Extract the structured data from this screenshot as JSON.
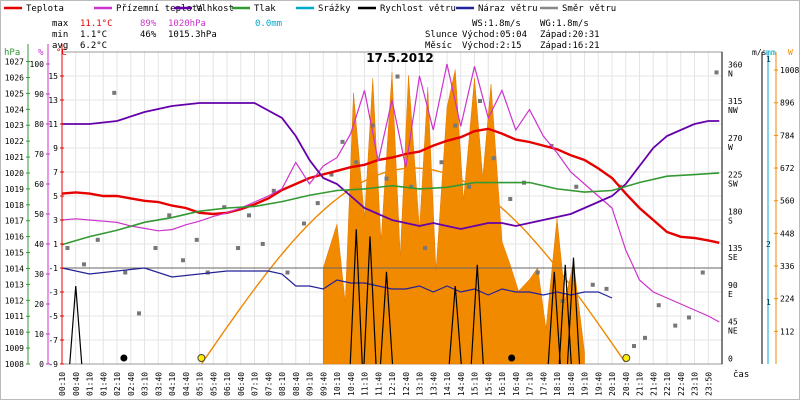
{
  "chart_data": {
    "type": "line",
    "title": "17.5.2012",
    "x_unit": "čas",
    "x_labels": [
      "00:10",
      "00:40",
      "01:10",
      "01:40",
      "02:10",
      "02:40",
      "03:10",
      "03:40",
      "04:10",
      "04:40",
      "05:10",
      "05:40",
      "06:10",
      "06:40",
      "07:10",
      "07:40",
      "08:10",
      "08:40",
      "09:10",
      "09:40",
      "10:10",
      "10:40",
      "11:10",
      "11:40",
      "12:10",
      "12:40",
      "13:10",
      "13:40",
      "14:10",
      "14:40",
      "15:10",
      "15:40",
      "16:10",
      "16:40",
      "17:10",
      "17:40",
      "18:10",
      "18:40",
      "19:10",
      "19:40",
      "20:10",
      "20:40",
      "21:10",
      "21:40",
      "22:10",
      "22:40",
      "23:10",
      "23:50"
    ],
    "legend": [
      {
        "name": "Teplota",
        "color": "#e60000"
      },
      {
        "name": "Přízemní teplota",
        "color": "#cc33cc"
      },
      {
        "name": "Vlhkost",
        "color": "#6600aa"
      },
      {
        "name": "Tlak",
        "color": "#339933"
      },
      {
        "name": "Srážky",
        "color": "#00aacc"
      },
      {
        "name": "Rychlost větru",
        "color": "#000000"
      },
      {
        "name": "Náraz větru",
        "color": "#222299"
      },
      {
        "name": "Směr větru",
        "color": "#888888"
      }
    ],
    "stats": {
      "labels": [
        "max",
        "min",
        "avg"
      ],
      "temp": [
        "11.1°C",
        "1.1°C",
        "6.2°C"
      ],
      "humidity": [
        "89%",
        "46%",
        ""
      ],
      "pressure": [
        "1020hPa",
        "1015.3hPa",
        ""
      ],
      "rain": [
        "0.0mm",
        "",
        ""
      ]
    },
    "info": {
      "ws": "WS:1.8m/s",
      "wg": "WG:1.8m/s",
      "sun_label": "Slunce",
      "sunrise": "Východ:05:04",
      "sunset": "Západ:20:31",
      "moon_label": "Měsíc",
      "moonrise": "Východ:2:15",
      "moonset": "Západ:16:21"
    },
    "axes": {
      "hpa": {
        "label": "hPa",
        "ticks": [
          "1027",
          "1026",
          "1025",
          "1024",
          "1023",
          "1022",
          "1021",
          "1020",
          "1019",
          "1018",
          "1017",
          "1016",
          "1015",
          "1014",
          "1013",
          "1012",
          "1011",
          "1010",
          "1009",
          "1008"
        ]
      },
      "pct": {
        "label": "%",
        "ticks": [
          "100",
          "90",
          "80",
          "70",
          "60",
          "50",
          "40",
          "30",
          "20",
          "10",
          "0"
        ]
      },
      "celsius": {
        "label": "°C",
        "ticks": [
          "15",
          "13",
          "11",
          "9",
          "7",
          "5",
          "3",
          "1",
          "-1",
          "-3",
          "-5",
          "-7",
          "-9"
        ]
      },
      "direction": {
        "ticks": [
          "360 N",
          "315 NW",
          "270 W",
          "225 SW",
          "180 S",
          "135 SE",
          "90 E",
          "45 NE",
          "0"
        ]
      },
      "ms": {
        "label": "m/s",
        "ticks": [
          "1",
          "2",
          "1"
        ]
      },
      "mm": {
        "label": "mm"
      },
      "wm2": {
        "label": "W",
        "ticks": [
          "1008",
          "896",
          "784",
          "672",
          "560",
          "448",
          "336",
          "224",
          "112"
        ]
      }
    },
    "ylim_temp": [
      -9,
      17
    ],
    "xlim_hours": [
      0,
      24
    ],
    "grid": true,
    "series": [
      {
        "name": "Teplota",
        "unit": "°C",
        "x": [
          0,
          0.5,
          1,
          1.5,
          2,
          2.5,
          3,
          3.5,
          4,
          4.5,
          5,
          5.5,
          6,
          6.5,
          7,
          7.5,
          8,
          8.5,
          9,
          9.5,
          10,
          10.5,
          11,
          11.5,
          12,
          12.5,
          13,
          13.5,
          14,
          14.5,
          15,
          15.5,
          16,
          16.5,
          17,
          17.5,
          18,
          18.5,
          19,
          19.5,
          20,
          20.5,
          21,
          21.5,
          22,
          22.5,
          23,
          23.5,
          23.9
        ],
        "y": [
          5.2,
          5.3,
          5.2,
          5.0,
          5.0,
          4.8,
          4.6,
          4.5,
          4.2,
          4.0,
          3.6,
          3.5,
          3.6,
          3.9,
          4.3,
          4.8,
          5.5,
          6.0,
          6.5,
          6.8,
          7.1,
          7.4,
          7.6,
          8.0,
          8.2,
          8.5,
          8.7,
          9.2,
          9.6,
          9.9,
          10.4,
          10.6,
          10.2,
          9.7,
          9.5,
          9.2,
          8.9,
          8.4,
          8.0,
          7.3,
          6.5,
          5.2,
          4.0,
          3.0,
          2.0,
          1.6,
          1.5,
          1.3,
          1.1
        ]
      },
      {
        "name": "Přízemní teplota",
        "unit": "°C",
        "x": [
          0,
          0.5,
          1,
          1.5,
          2,
          2.5,
          3,
          3.5,
          4,
          4.5,
          5,
          5.5,
          6,
          6.5,
          7,
          7.5,
          8,
          8.5,
          9,
          9.5,
          10,
          10.5,
          11,
          11.5,
          12,
          12.5,
          13,
          13.5,
          14,
          14.5,
          15,
          15.5,
          16,
          16.5,
          17,
          17.5,
          18,
          18.5,
          19,
          19.5,
          20,
          20.5,
          21,
          21.5,
          22,
          22.5,
          23,
          23.5,
          23.9
        ],
        "y": [
          3.0,
          3.1,
          3.0,
          2.9,
          2.8,
          2.5,
          2.3,
          2.1,
          2.2,
          2.6,
          2.9,
          3.3,
          3.6,
          4.0,
          4.5,
          5.0,
          5.6,
          7.8,
          6.0,
          7.5,
          8.2,
          10.2,
          13.8,
          7.9,
          13.0,
          7.4,
          15.0,
          10.5,
          16.0,
          10.8,
          15.8,
          11.5,
          13.8,
          10.5,
          12.2,
          10.0,
          8.6,
          7.0,
          6.0,
          5.0,
          4.0,
          0.5,
          -2.0,
          -3.0,
          -3.5,
          -4.0,
          -4.5,
          -5.0,
          -5.5
        ]
      },
      {
        "name": "Vlhkost",
        "unit": "%",
        "x": [
          0,
          1,
          2,
          3,
          4,
          5,
          6,
          7,
          8,
          8.5,
          9,
          9.5,
          10,
          10.5,
          11,
          11.5,
          12,
          12.5,
          13,
          13.5,
          14,
          14.5,
          15,
          15.5,
          16,
          16.5,
          17,
          17.5,
          18,
          18.5,
          19,
          19.5,
          20,
          20.5,
          21,
          21.5,
          22,
          22.5,
          23,
          23.5,
          23.9
        ],
        "y": [
          80,
          80,
          81,
          84,
          86,
          87,
          87,
          87,
          82,
          76,
          68,
          62,
          60,
          56,
          52,
          50,
          48,
          47,
          46,
          47,
          46,
          45,
          46,
          47,
          47,
          46,
          47,
          48,
          49,
          50,
          52,
          54,
          56,
          60,
          66,
          72,
          76,
          78,
          80,
          81,
          81
        ]
      },
      {
        "name": "Tlak",
        "unit": "hPa",
        "x": [
          0,
          1,
          2,
          3,
          4,
          5,
          6,
          7,
          8,
          9,
          10,
          11,
          12,
          13,
          14,
          15,
          16,
          17,
          18,
          19,
          20,
          21,
          22,
          23,
          23.9
        ],
        "y": [
          1015.5,
          1016.0,
          1016.4,
          1016.9,
          1017.2,
          1017.6,
          1017.8,
          1017.9,
          1018.2,
          1018.6,
          1018.9,
          1019.0,
          1019.2,
          1019.0,
          1019.1,
          1019.4,
          1019.4,
          1019.4,
          1019.0,
          1018.8,
          1018.9,
          1019.4,
          1019.8,
          1019.9,
          1020.0
        ]
      },
      {
        "name": "Náraz větru",
        "unit": "%",
        "x": [
          0,
          1,
          2,
          3,
          4,
          5,
          6,
          7,
          7.5,
          8,
          8.5,
          9,
          9.5,
          10,
          10.5,
          11,
          11.5,
          12,
          12.5,
          13,
          13.5,
          14,
          14.5,
          15,
          15.5,
          16,
          16.5,
          17,
          17.5,
          18,
          18.5,
          19,
          19.5,
          20
        ],
        "y": [
          32,
          30,
          31,
          32,
          29,
          30,
          31,
          31,
          31,
          30,
          26,
          26,
          25,
          28,
          27,
          27,
          26,
          25,
          25,
          26,
          24,
          26,
          24,
          25,
          23,
          25,
          24,
          24,
          23,
          24,
          23,
          24,
          24,
          22
        ]
      },
      {
        "name": "Rychlost větru",
        "unit": "m/s",
        "x": [
          0.5,
          10.7,
          11.2,
          11.8,
          14.3,
          15.1,
          17.9,
          18.3,
          18.6
        ],
        "y": [
          1.1,
          1.9,
          1.8,
          1.3,
          1.1,
          1.4,
          1.3,
          1.4,
          1.5
        ]
      },
      {
        "name": "Směr větru",
        "unit": "°",
        "x": [
          0.2,
          0.8,
          1.3,
          1.9,
          2.3,
          2.8,
          3.4,
          3.9,
          4.4,
          4.9,
          5.3,
          5.9,
          6.4,
          6.8,
          7.3,
          7.7,
          8.2,
          8.8,
          9.3,
          9.8,
          10.2,
          10.7,
          11.3,
          11.8,
          12.2,
          12.7,
          13.2,
          13.8,
          14.3,
          14.8,
          15.2,
          15.7,
          16.3,
          16.8,
          17.3,
          17.8,
          18.2,
          18.7,
          19.3,
          19.8,
          20.3,
          20.8,
          21.2,
          21.7,
          22.3,
          22.8,
          23.3,
          23.8
        ],
        "y": [
          140,
          120,
          150,
          330,
          110,
          60,
          140,
          180,
          125,
          150,
          110,
          190,
          140,
          180,
          145,
          210,
          110,
          170,
          195,
          230,
          270,
          245,
          290,
          225,
          350,
          215,
          140,
          245,
          290,
          215,
          320,
          250,
          200,
          220,
          110,
          265,
          75,
          215,
          95,
          90,
          215,
          20,
          30,
          70,
          45,
          55,
          110,
          355
        ]
      }
    ],
    "solar": {
      "name": "Sluneční záření",
      "unit": "W/m²",
      "x": [
        9.5,
        10,
        10.3,
        10.6,
        11,
        11.3,
        11.6,
        12,
        12.3,
        12.6,
        13,
        13.3,
        13.6,
        14,
        14.3,
        14.6,
        15,
        15.3,
        15.6,
        16,
        16.3,
        16.6,
        17,
        17.3,
        17.6,
        18,
        18.3,
        18.6,
        19
      ],
      "y": [
        330,
        480,
        210,
        930,
        500,
        980,
        420,
        1000,
        370,
        990,
        460,
        950,
        320,
        880,
        1010,
        560,
        980,
        640,
        960,
        420,
        340,
        250,
        290,
        330,
        120,
        500,
        220,
        350,
        40
      ]
    },
    "sun_curve": {
      "sunrise_h": 5.07,
      "sunset_h": 20.52,
      "peak_wm2": 672
    }
  }
}
